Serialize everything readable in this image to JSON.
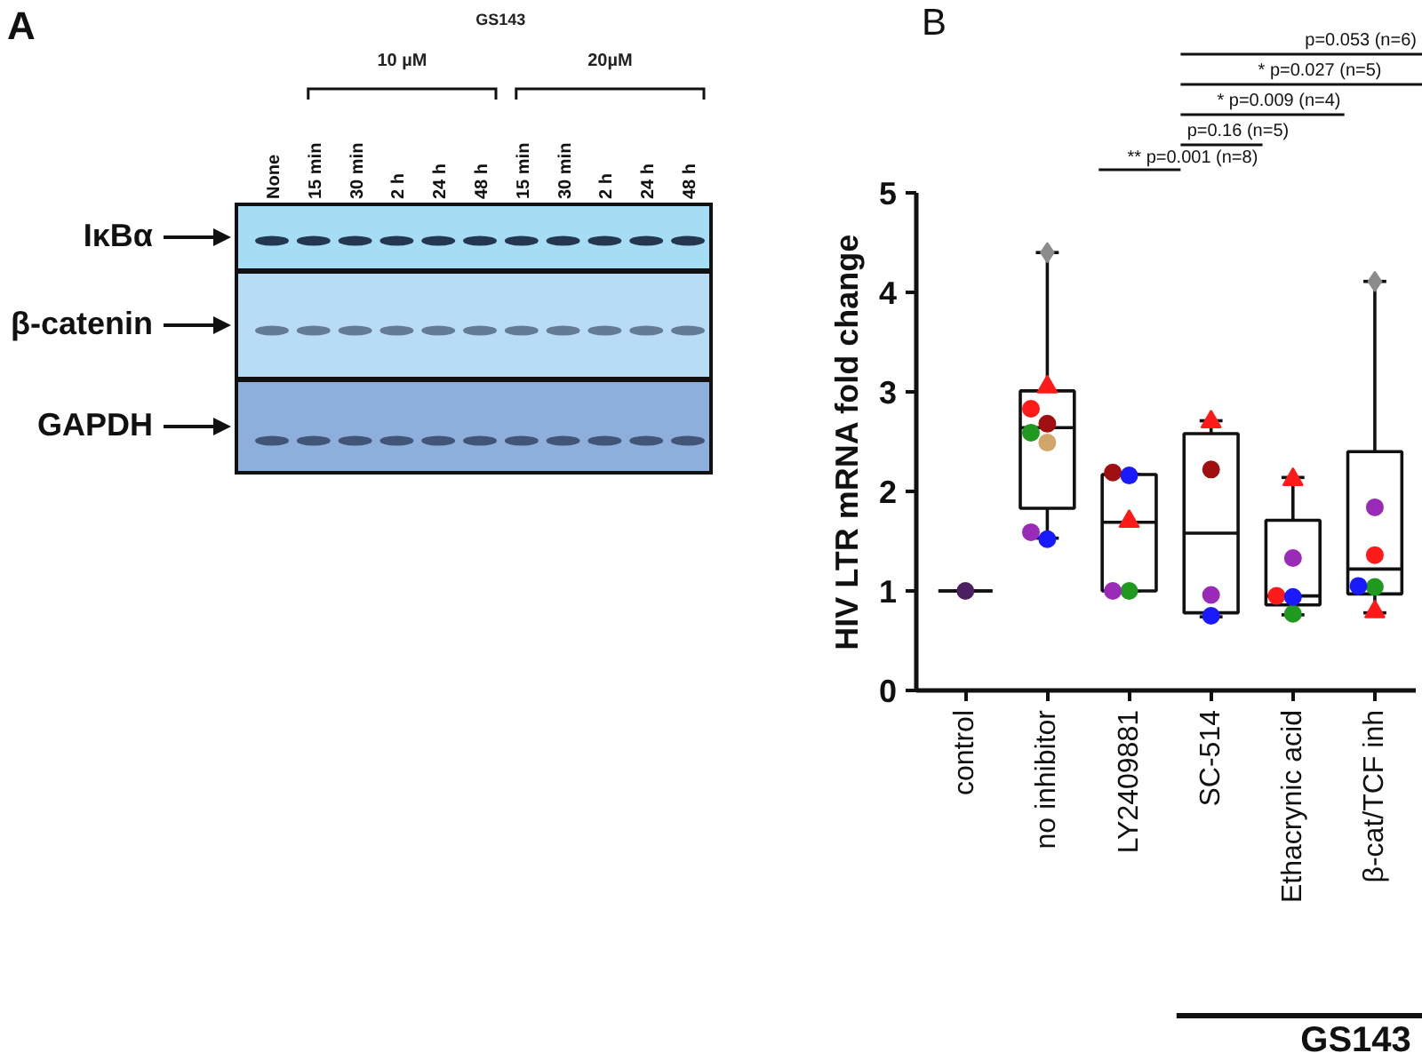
{
  "chart_data": [
    {
      "type": "other",
      "title": "A",
      "categories": [
        "None",
        "15 min",
        "30 min",
        "2 h",
        "24 h",
        "48 h",
        "15 min",
        "30 min",
        "2 h",
        "24 h",
        "48 h"
      ],
      "y_categories": [
        "IκBα",
        "β-catenin",
        "GAPDH"
      ],
      "annotations": [
        "GS143",
        "10 µM",
        "20µM"
      ]
    },
    {
      "type": "box",
      "title": "B",
      "ylabel": "HIV LTR mRNA fold change",
      "color": "#111111",
      "categories": [
        "control",
        "no inhibitor",
        "LY2409881",
        "SC-514",
        "Ethacrynic acid",
        "β-cat/TCF inh"
      ],
      "ylim": [
        0,
        5
      ],
      "yticks": [
        0,
        1,
        2,
        3,
        4,
        5
      ],
      "boxes": [
        {
          "low": 1,
          "q1": 1,
          "median": 1,
          "q3": 1,
          "high": 1
        },
        {
          "low": 1.53,
          "q1": 1.83,
          "median": 2.64,
          "q3": 3.01,
          "high": 4.4
        },
        {
          "low": 1.0,
          "q1": 1.0,
          "median": 1.69,
          "q3": 2.17,
          "high": 2.17
        },
        {
          "low": 0.74,
          "q1": 0.78,
          "median": 1.58,
          "q3": 2.58,
          "high": 2.71
        },
        {
          "low": 0.76,
          "q1": 0.86,
          "median": 0.95,
          "q3": 1.71,
          "high": 2.14
        },
        {
          "low": 0.78,
          "q1": 0.97,
          "median": 1.22,
          "q3": 2.4,
          "high": 4.11
        }
      ],
      "series": [
        {
          "type": "scatter",
          "color": "#8c8c8c",
          "marker": "diamond",
          "x": [
            "no inhibitor",
            "β-cat/TCF inh"
          ],
          "values": [
            4.4,
            4.11
          ]
        },
        {
          "type": "scatter",
          "color": "#ff1a1a",
          "marker": "triangle",
          "x": [
            "no inhibitor",
            "LY2409881",
            "SC-514",
            "Ethacrynic acid",
            "β-cat/TCF inh"
          ],
          "values": [
            3.05,
            1.7,
            2.7,
            2.12,
            0.79
          ]
        },
        {
          "type": "scatter",
          "color": "#ff1a1a",
          "marker": "circle",
          "x": [
            "no inhibitor",
            "Ethacrynic acid",
            "β-cat/TCF inh"
          ],
          "values": [
            2.83,
            0.95,
            1.36
          ]
        },
        {
          "type": "scatter",
          "color": "#a01010",
          "marker": "circle",
          "x": [
            "no inhibitor",
            "LY2409881",
            "SC-514"
          ],
          "values": [
            2.68,
            2.19,
            2.22
          ]
        },
        {
          "type": "scatter",
          "color": "#1f9a1f",
          "marker": "circle",
          "x": [
            "no inhibitor",
            "LY2409881",
            "Ethacrynic acid",
            "β-cat/TCF inh"
          ],
          "values": [
            2.59,
            1.0,
            0.77,
            1.04
          ]
        },
        {
          "type": "scatter",
          "color": "#d2a56a",
          "marker": "circle",
          "x": [
            "no inhibitor"
          ],
          "values": [
            2.49
          ]
        },
        {
          "type": "scatter",
          "color": "#1a1aff",
          "marker": "circle",
          "x": [
            "no inhibitor",
            "LY2409881",
            "SC-514",
            "Ethacrynic acid",
            "β-cat/TCF inh"
          ],
          "values": [
            1.52,
            2.16,
            0.75,
            0.94,
            1.05
          ]
        },
        {
          "type": "scatter",
          "color": "#9a2ab8",
          "marker": "circle",
          "x": [
            "no inhibitor",
            "LY2409881",
            "SC-514",
            "Ethacrynic acid",
            "β-cat/TCF inh"
          ],
          "values": [
            1.59,
            1.0,
            0.96,
            1.33,
            1.84
          ]
        },
        {
          "type": "scatter",
          "color": "#4a2060",
          "marker": "circle",
          "x": [
            "control"
          ],
          "values": [
            1.0
          ]
        }
      ],
      "annotations": [
        "** p=0.001 (n=8)",
        "p=0.16 (n=5)",
        "* p=0.009 (n=4)",
        "* p=0.027 (n=5)",
        "p=0.053 (n=6)",
        "GS143"
      ]
    }
  ]
}
